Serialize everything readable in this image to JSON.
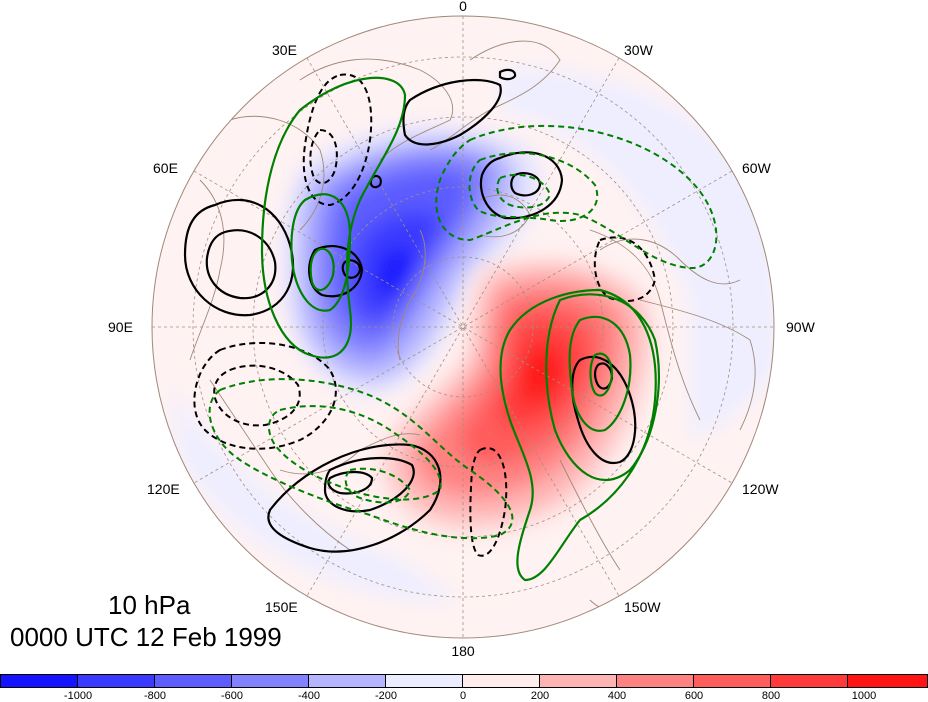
{
  "title": {
    "level": "10 hPa",
    "time": "0000 UTC 12 Feb 1999"
  },
  "longitude_labels": {
    "lon_0": "0",
    "lon_30w": "30W",
    "lon_60w": "60W",
    "lon_90w": "90W",
    "lon_120w": "120W",
    "lon_150w": "150W",
    "lon_180": "180",
    "lon_150e": "150E",
    "lon_120e": "120E",
    "lon_90e": "90E",
    "lon_60e": "60E",
    "lon_30e": "30E"
  },
  "projection": "north-polar-stereographic",
  "colorbar": {
    "colors": [
      "#1414ff",
      "#3a3aff",
      "#5c5cff",
      "#8282ff",
      "#b4b4ff",
      "#ececff",
      "#ffecec",
      "#ffb4b4",
      "#ff8282",
      "#ff5c5c",
      "#ff3a3a",
      "#ff1414"
    ],
    "ticks": {
      "t_m1000": "-1000",
      "t_m800": "-800",
      "t_m600": "-600",
      "t_m400": "-400",
      "t_m200": "-200",
      "t_0": "0",
      "t_200": "200",
      "t_400": "400",
      "t_600": "600",
      "t_800": "800",
      "t_1000": "1000"
    }
  },
  "contour_colors": {
    "black_contours": "#000000",
    "green_contours": "#008000",
    "coastlines": "#a08878",
    "graticule": "#a09080"
  }
}
